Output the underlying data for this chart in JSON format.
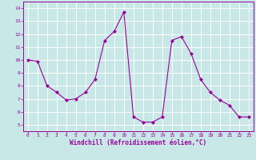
{
  "x": [
    0,
    1,
    2,
    3,
    4,
    5,
    6,
    7,
    8,
    9,
    10,
    11,
    12,
    13,
    14,
    15,
    16,
    17,
    18,
    19,
    20,
    21,
    22,
    23
  ],
  "y": [
    10.0,
    9.9,
    8.0,
    7.5,
    6.9,
    7.0,
    7.5,
    8.5,
    11.5,
    12.2,
    13.7,
    5.6,
    5.2,
    5.2,
    5.6,
    11.5,
    11.8,
    10.5,
    8.5,
    7.5,
    6.9,
    6.5,
    5.6,
    5.6
  ],
  "line_color": "#990099",
  "marker": "D",
  "marker_size": 2,
  "bg_color": "#c8e8e8",
  "grid_color": "#ffffff",
  "xlabel": "Windchill (Refroidissement éolien,°C)",
  "xlabel_color": "#990099",
  "tick_color": "#990099",
  "xlim": [
    -0.5,
    23.5
  ],
  "ylim": [
    4.5,
    14.5
  ],
  "yticks": [
    5,
    6,
    7,
    8,
    9,
    10,
    11,
    12,
    13,
    14
  ],
  "xticks": [
    0,
    1,
    2,
    3,
    4,
    5,
    6,
    7,
    8,
    9,
    10,
    11,
    12,
    13,
    14,
    15,
    16,
    17,
    18,
    19,
    20,
    21,
    22,
    23
  ]
}
